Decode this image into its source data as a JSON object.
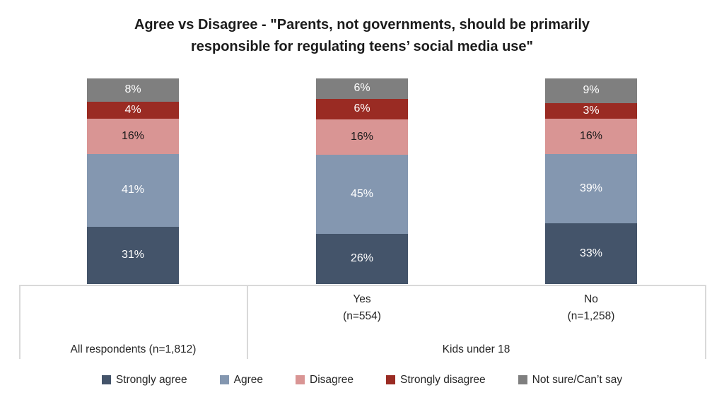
{
  "title": {
    "line1": "Agree vs Disagree - \"Parents, not governments, should be primarily",
    "line2": "responsible for regulating teens’ social media use\""
  },
  "chart_data": {
    "type": "bar",
    "subtype": "100%-stacked-column",
    "title": "Agree vs Disagree - \"Parents, not governments, should be primarily responsible for regulating teens’ social media use\"",
    "categories": [
      "All respondents (n=1,812)",
      "Yes (n=554)",
      "No (n=1,258)"
    ],
    "group_axis": {
      "left_group_label": "All respondents (n=1,812)",
      "right_group_label": "Kids under 18",
      "right_group_members": [
        "Yes (n=554)",
        "No (n=1,258)"
      ]
    },
    "series": [
      {
        "name": "Strongly agree",
        "color": "#44546A",
        "label_color": "#ffffff",
        "values": [
          31,
          26,
          33
        ]
      },
      {
        "name": "Agree",
        "color": "#8497B0",
        "label_color": "#ffffff",
        "values": [
          41,
          45,
          39
        ]
      },
      {
        "name": "Disagree",
        "color": "#D99594",
        "label_color": "#1a1a1a",
        "values": [
          16,
          16,
          16
        ]
      },
      {
        "name": "Strongly disagree",
        "color": "#9A2B23",
        "label_color": "#ffffff",
        "values": [
          4,
          6,
          3
        ]
      },
      {
        "name": "Not sure/Can’t say",
        "color": "#7F7F7F",
        "label_color": "#ffffff",
        "values": [
          8,
          6,
          9
        ]
      }
    ],
    "value_format": "percent",
    "data_labels": true,
    "gridlines": false,
    "legend_position": "bottom",
    "ylim": [
      0,
      100
    ]
  },
  "axis": {
    "col_yes_line1": "Yes",
    "col_yes_line2": "(n=554)",
    "col_no_line1": "No",
    "col_no_line2": "(n=1,258)",
    "group_left": "All respondents (n=1,812)",
    "group_right": "Kids under 18"
  },
  "colors": {
    "axis_border": "#d9d9d9",
    "text": "#262626",
    "background": "#ffffff"
  }
}
